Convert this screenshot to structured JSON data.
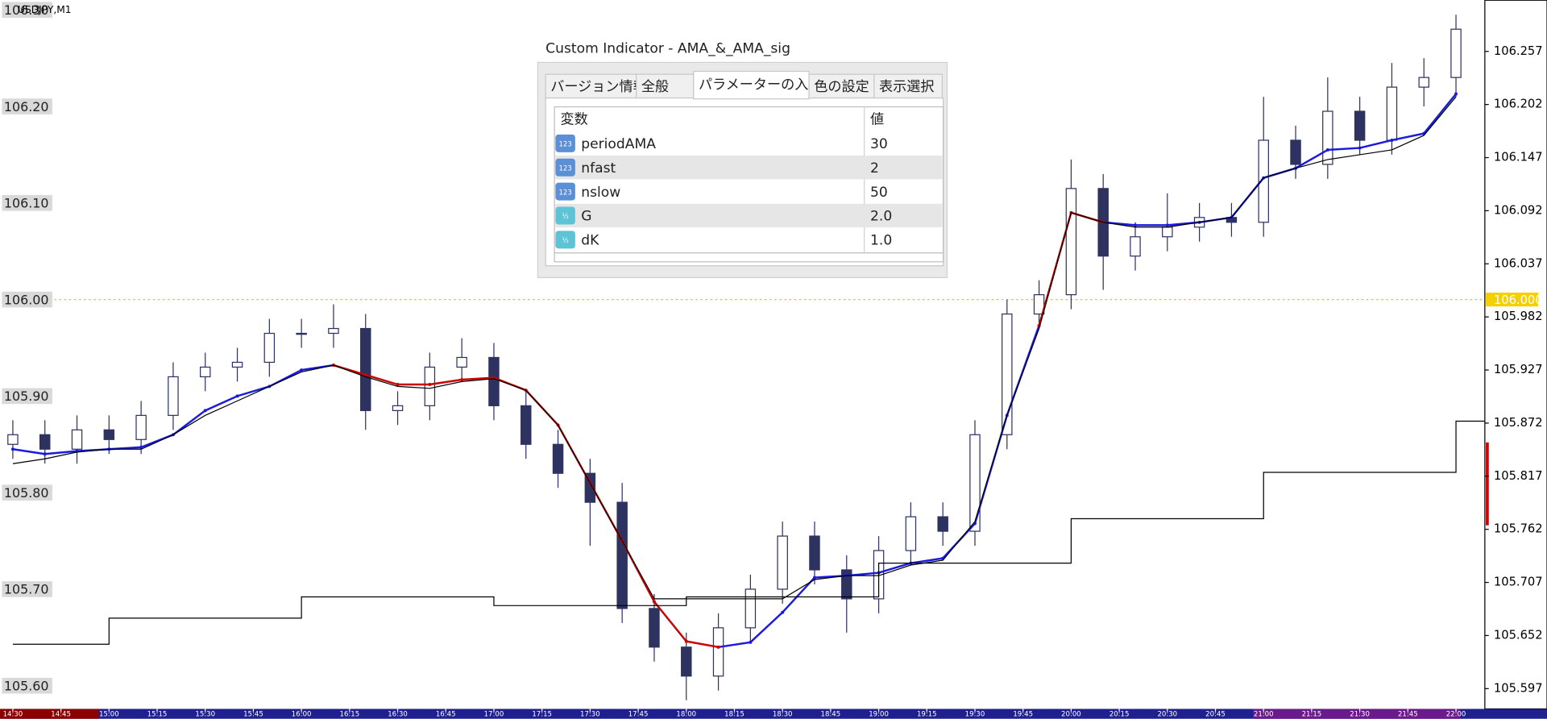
{
  "chart_data": {
    "type": "candlestick",
    "title": "USDJPY,M1",
    "x": [
      "14:30",
      "14:40",
      "14:50",
      "15:00",
      "15:10",
      "15:20",
      "15:30",
      "15:40",
      "15:50",
      "16:00",
      "16:10",
      "16:20",
      "16:30",
      "16:40",
      "16:50",
      "17:00",
      "17:10",
      "17:20",
      "17:30",
      "17:40",
      "17:50",
      "18:00",
      "18:10",
      "18:20",
      "18:30",
      "18:40",
      "18:50",
      "19:00",
      "19:10",
      "19:20",
      "19:30",
      "19:40",
      "19:50",
      "20:00",
      "20:10",
      "20:20",
      "20:30",
      "20:40",
      "20:50",
      "21:00",
      "21:10",
      "21:20",
      "21:30",
      "21:40",
      "21:50",
      "22:00"
    ],
    "open": [
      105.85,
      105.86,
      105.845,
      105.865,
      105.855,
      105.88,
      105.92,
      105.93,
      105.935,
      105.965,
      105.965,
      105.97,
      105.885,
      105.89,
      105.93,
      105.94,
      105.89,
      105.85,
      105.82,
      105.79,
      105.68,
      105.64,
      105.61,
      105.66,
      105.7,
      105.755,
      105.72,
      105.69,
      105.74,
      105.775,
      105.76,
      105.86,
      105.985,
      106.005,
      106.115,
      106.045,
      106.065,
      106.075,
      106.085,
      106.08,
      106.165,
      106.14,
      106.195,
      106.165,
      106.22,
      106.23
    ],
    "high": [
      105.875,
      105.875,
      105.88,
      105.88,
      105.895,
      105.935,
      105.945,
      105.95,
      105.98,
      105.98,
      105.995,
      105.985,
      105.905,
      105.945,
      105.96,
      105.955,
      105.905,
      105.865,
      105.835,
      105.81,
      105.695,
      105.655,
      105.675,
      105.715,
      105.77,
      105.77,
      105.735,
      105.755,
      105.79,
      105.79,
      105.875,
      106.0,
      106.02,
      106.145,
      106.13,
      106.08,
      106.11,
      106.1,
      106.1,
      106.21,
      106.18,
      106.23,
      106.21,
      106.245,
      106.25,
      106.295
    ],
    "low": [
      105.835,
      105.83,
      105.83,
      105.84,
      105.84,
      105.865,
      105.905,
      105.915,
      105.92,
      105.95,
      105.95,
      105.865,
      105.87,
      105.875,
      105.915,
      105.875,
      105.835,
      105.805,
      105.745,
      105.665,
      105.625,
      105.585,
      105.595,
      105.645,
      105.685,
      105.705,
      105.655,
      105.675,
      105.725,
      105.745,
      105.745,
      105.845,
      105.97,
      105.99,
      106.01,
      106.03,
      106.05,
      106.06,
      106.065,
      106.065,
      106.125,
      106.125,
      106.15,
      106.15,
      106.2,
      106.21
    ],
    "close": [
      105.86,
      105.845,
      105.865,
      105.855,
      105.88,
      105.92,
      105.93,
      105.935,
      105.965,
      105.965,
      105.97,
      105.885,
      105.89,
      105.93,
      105.94,
      105.89,
      105.85,
      105.82,
      105.79,
      105.68,
      105.64,
      105.61,
      105.66,
      105.7,
      105.755,
      105.72,
      105.69,
      105.74,
      105.775,
      105.76,
      105.86,
      105.985,
      106.005,
      106.115,
      106.045,
      106.065,
      106.075,
      106.085,
      106.08,
      106.165,
      106.14,
      106.195,
      106.165,
      106.22,
      106.23,
      106.28
    ],
    "up_color": "#ffffff",
    "down_color": "#2e3260",
    "wick_color": "#2e3260",
    "series": [
      {
        "color": "#1a1ae0",
        "width": 2,
        "values": [
          105.845,
          105.84,
          105.843,
          105.845,
          105.847,
          105.86,
          105.885,
          105.9,
          105.91,
          105.927,
          105.932,
          null,
          null,
          null,
          null,
          null,
          null,
          null,
          null,
          null,
          null,
          null,
          105.64,
          105.645,
          105.676,
          105.712,
          105.714,
          105.717,
          105.727,
          105.732,
          105.768,
          105.88,
          105.973,
          null,
          106.08,
          106.077,
          106.077,
          106.08,
          106.085,
          106.126,
          106.136,
          106.155,
          106.157,
          106.165,
          106.172,
          106.213
        ]
      },
      {
        "color": "#cc0000",
        "width": 2,
        "values": [
          null,
          null,
          null,
          null,
          null,
          null,
          null,
          null,
          null,
          null,
          105.932,
          105.922,
          105.912,
          105.912,
          105.917,
          105.919,
          105.906,
          105.87,
          105.81,
          105.75,
          105.687,
          105.646,
          105.64,
          null,
          null,
          null,
          null,
          null,
          null,
          null,
          null,
          null,
          105.973,
          106.09,
          106.08,
          null,
          null,
          null,
          null,
          null,
          null,
          null,
          null,
          null,
          null,
          null
        ]
      },
      {
        "color": "#000000",
        "width": 1,
        "values": [
          105.83,
          105.835,
          105.842,
          105.845,
          105.845,
          105.86,
          105.88,
          105.895,
          105.91,
          105.925,
          105.932,
          105.92,
          105.91,
          105.908,
          105.915,
          105.918,
          105.906,
          105.87,
          105.81,
          105.75,
          105.69,
          105.69,
          105.69,
          105.69,
          105.69,
          105.71,
          105.714,
          105.714,
          105.725,
          105.73,
          105.77,
          105.88,
          105.97,
          106.09,
          106.08,
          106.075,
          106.075,
          106.08,
          106.085,
          106.126,
          106.136,
          106.145,
          106.15,
          106.155,
          106.17,
          106.21
        ]
      },
      {
        "color": "#000000",
        "width": 1,
        "step": true,
        "values": [
          105.643,
          105.643,
          105.643,
          105.67,
          105.67,
          105.67,
          105.67,
          105.67,
          105.67,
          105.692,
          105.692,
          105.692,
          105.692,
          105.692,
          105.692,
          105.683,
          105.683,
          105.683,
          105.683,
          105.683,
          105.683,
          105.692,
          105.692,
          105.692,
          105.692,
          105.692,
          105.692,
          105.727,
          105.727,
          105.727,
          105.727,
          105.727,
          105.727,
          105.773,
          105.773,
          105.773,
          105.773,
          105.773,
          105.773,
          105.821,
          105.821,
          105.821,
          105.821,
          105.821,
          105.821,
          105.874
        ]
      }
    ],
    "xlim": [
      "14:26",
      "22:09"
    ],
    "xticks": [
      "14:30",
      "14:45",
      "15:00",
      "15:15",
      "15:30",
      "15:45",
      "16:00",
      "16:15",
      "16:30",
      "16:45",
      "17:00",
      "17:15",
      "17:30",
      "17:45",
      "18:00",
      "18:15",
      "18:30",
      "18:45",
      "19:00",
      "19:15",
      "19:30",
      "19:45",
      "20:00",
      "20:15",
      "20:30",
      "20:45",
      "21:00",
      "21:15",
      "21:30",
      "21:45",
      "22:00"
    ],
    "ylim": [
      105.576,
      106.31
    ],
    "yticks": [
      106.257,
      106.202,
      106.147,
      106.092,
      106.037,
      105.982,
      105.927,
      105.872,
      105.817,
      105.762,
      105.707,
      105.652,
      105.597
    ],
    "price_levels": [
      {
        "value": 106.3,
        "label": "106.30"
      },
      {
        "value": 106.2,
        "label": "106.20"
      },
      {
        "value": 106.1,
        "label": "106.10"
      },
      {
        "value": 106.0,
        "label": "106.00"
      },
      {
        "value": 105.9,
        "label": "105.90"
      },
      {
        "value": 105.8,
        "label": "105.80"
      },
      {
        "value": 105.7,
        "label": "105.70"
      },
      {
        "value": 105.6,
        "label": "105.60"
      }
    ],
    "current_price": {
      "value": 106.0,
      "label": "106.000"
    }
  },
  "dialog": {
    "title": "Custom Indicator - AMA_&_AMA_sig",
    "tabs": [
      "バージョン情報",
      "全般",
      "パラメーターの入力",
      "色の設定",
      "表示選択"
    ],
    "table": {
      "header": [
        "変数",
        "値"
      ],
      "rows": [
        [
          "123",
          "periodAMA",
          "30"
        ],
        [
          "123",
          "nfast",
          "2"
        ],
        [
          "123",
          "nslow",
          "50"
        ],
        [
          "½",
          "G",
          "2.0"
        ],
        [
          "½",
          "dK",
          "1.0"
        ]
      ]
    }
  }
}
